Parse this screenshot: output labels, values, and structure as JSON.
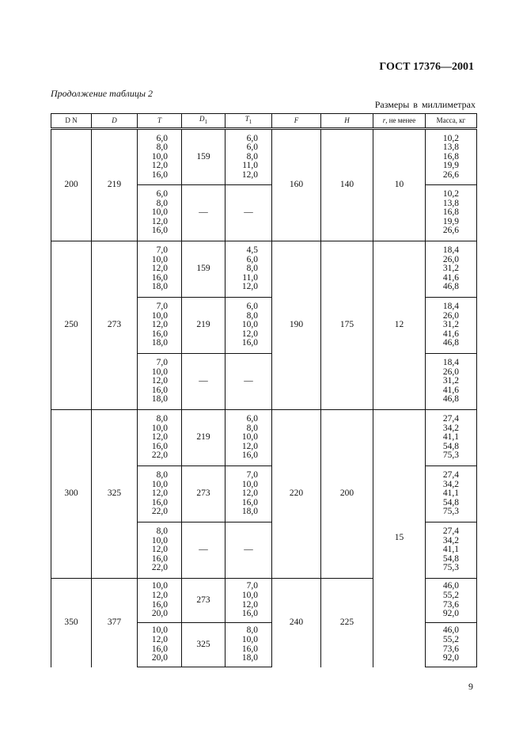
{
  "header": {
    "standard": "ГОСТ 17376—2001",
    "continuation": "Продолжение таблицы 2",
    "units": "Размеры в миллиметрах"
  },
  "table": {
    "columns": [
      {
        "label": "D N",
        "italic": false,
        "sub": ""
      },
      {
        "label": "D",
        "italic": true,
        "sub": ""
      },
      {
        "label": "T",
        "italic": true,
        "sub": ""
      },
      {
        "label": "D",
        "italic": true,
        "sub": "1"
      },
      {
        "label": "T",
        "italic": true,
        "sub": "1"
      },
      {
        "label": "F",
        "italic": true,
        "sub": ""
      },
      {
        "label": "H",
        "italic": true,
        "sub": ""
      },
      {
        "label": "r",
        "italic": true,
        "sub": "",
        "suffix": ", не менее"
      },
      {
        "label": "Масса, кг",
        "italic": false,
        "sub": ""
      }
    ],
    "groups": [
      {
        "dn": "200",
        "d": "219",
        "f": "160",
        "h": "140",
        "r": "10",
        "rows": [
          {
            "t": [
              "6,0",
              "8,0",
              "10,0",
              "12,0",
              "16,0"
            ],
            "d1": "159",
            "t1": [
              "6,0",
              "6,0",
              "8,0",
              "11,0",
              "12,0"
            ],
            "mass": [
              "10,2",
              "13,8",
              "16,8",
              "19,9",
              "26,6"
            ]
          },
          {
            "t": [
              "6,0",
              "8,0",
              "10,0",
              "12,0",
              "16,0"
            ],
            "d1": "—",
            "t1": [
              "—"
            ],
            "mass": [
              "10,2",
              "13,8",
              "16,8",
              "19,9",
              "26,6"
            ]
          }
        ]
      },
      {
        "dn": "250",
        "d": "273",
        "f": "190",
        "h": "175",
        "r": "12",
        "rows": [
          {
            "t": [
              "7,0",
              "10,0",
              "12,0",
              "16,0",
              "18,0"
            ],
            "d1": "159",
            "t1": [
              "4,5",
              "6,0",
              "8,0",
              "11,0",
              "12,0"
            ],
            "mass": [
              "18,4",
              "26,0",
              "31,2",
              "41,6",
              "46,8"
            ]
          },
          {
            "t": [
              "7,0",
              "10,0",
              "12,0",
              "16,0",
              "18,0"
            ],
            "d1": "219",
            "t1": [
              "6,0",
              "8,0",
              "10,0",
              "12,0",
              "16,0"
            ],
            "mass": [
              "18,4",
              "26,0",
              "31,2",
              "41,6",
              "46,8"
            ]
          },
          {
            "t": [
              "7,0",
              "10,0",
              "12,0",
              "16,0",
              "18,0"
            ],
            "d1": "—",
            "t1": [
              "—"
            ],
            "mass": [
              "18,4",
              "26,0",
              "31,2",
              "41,6",
              "46,8"
            ]
          }
        ]
      },
      {
        "dn": "300",
        "d": "325",
        "f": "220",
        "h": "200",
        "r": "15",
        "rows": [
          {
            "t": [
              "8,0",
              "10,0",
              "12,0",
              "16,0",
              "22,0"
            ],
            "d1": "219",
            "t1": [
              "6,0",
              "8,0",
              "10,0",
              "12,0",
              "16,0"
            ],
            "mass": [
              "27,4",
              "34,2",
              "41,1",
              "54,8",
              "75,3"
            ]
          },
          {
            "t": [
              "8,0",
              "10,0",
              "12,0",
              "16,0",
              "22,0"
            ],
            "d1": "273",
            "t1": [
              "7,0",
              "10,0",
              "12,0",
              "16,0",
              "18,0"
            ],
            "mass": [
              "27,4",
              "34,2",
              "41,1",
              "54,8",
              "75,3"
            ]
          },
          {
            "t": [
              "8,0",
              "10,0",
              "12,0",
              "16,0",
              "22,0"
            ],
            "d1": "—",
            "t1": [
              "—"
            ],
            "mass": [
              "27,4",
              "34,2",
              "41,1",
              "54,8",
              "75,3"
            ]
          }
        ]
      },
      {
        "dn": "350",
        "d": "377",
        "f": "240",
        "h": "225",
        "r": null,
        "rows": [
          {
            "t": [
              "10,0",
              "12,0",
              "16,0",
              "20,0"
            ],
            "d1": "273",
            "t1": [
              "7,0",
              "10,0",
              "12,0",
              "16,0"
            ],
            "mass": [
              "46,0",
              "55,2",
              "73,6",
              "92,0"
            ]
          },
          {
            "t": [
              "10,0",
              "12,0",
              "16,0",
              "20,0"
            ],
            "d1": "325",
            "t1": [
              "8,0",
              "10,0",
              "16,0",
              "18,0"
            ],
            "mass": [
              "46,0",
              "55,2",
              "73,6",
              "92,0"
            ]
          }
        ]
      }
    ]
  },
  "footer": {
    "page_number": "9"
  }
}
